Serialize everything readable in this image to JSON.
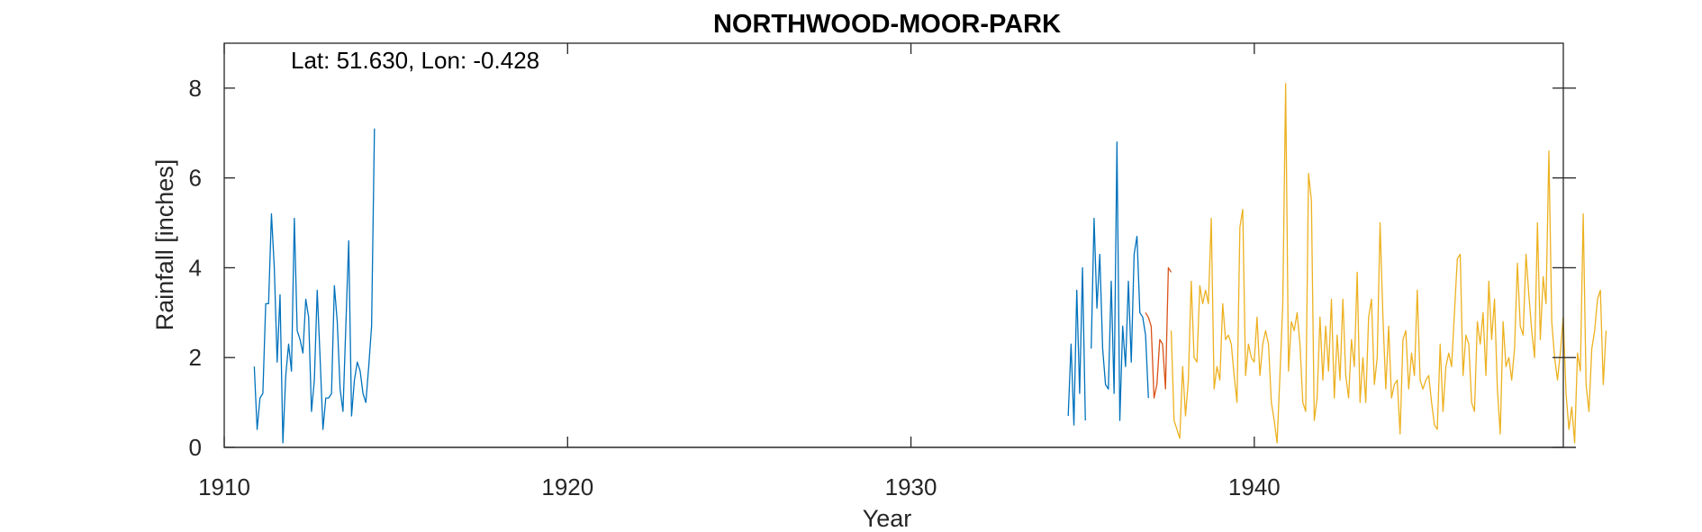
{
  "chart_data": {
    "type": "line",
    "title": "NORTHWOOD-MOOR-PARK",
    "annotation": "Lat: 51.630, Lon: -0.428",
    "xlabel": "Year",
    "ylabel": "Rainfall [inches]",
    "xlim": [
      1910,
      1949
    ],
    "ylim": [
      0,
      9
    ],
    "xticks": [
      1910,
      1920,
      1930,
      1940
    ],
    "yticks": [
      0,
      2,
      4,
      6,
      8
    ],
    "grid": false,
    "colors": {
      "blue": "#0072BD",
      "red": "#D95319",
      "orange": "#EDB120"
    },
    "series": [
      {
        "color": "#0072BD",
        "x_start": 1910.875,
        "step": 0.08333,
        "values": [
          1.8,
          0.4,
          1.1,
          1.2,
          3.2,
          3.2,
          5.2,
          4.0,
          1.9,
          3.4,
          0.1,
          1.6,
          2.3,
          1.7,
          5.1,
          2.6,
          2.4,
          2.1,
          3.3,
          2.9,
          0.8,
          1.5,
          3.5,
          2.0,
          0.4,
          1.1,
          1.1,
          1.2,
          3.6,
          2.8,
          1.3,
          0.8,
          2.7,
          4.6,
          0.7,
          1.5,
          1.9,
          1.7,
          1.2,
          1.0,
          1.8,
          2.7,
          7.1
        ]
      },
      {
        "color": "#0072BD",
        "x_start": 1934.58,
        "step": 0.08333,
        "values": [
          0.7,
          2.3,
          0.5,
          3.5,
          1.2,
          4.0,
          0.6
        ]
      },
      {
        "color": "#0072BD",
        "x_start": 1935.25,
        "step": 0.08333,
        "values": [
          2.2,
          5.1,
          3.1,
          4.3,
          2.2,
          1.4,
          1.3,
          3.7,
          1.2,
          6.8,
          0.6,
          2.7,
          1.8,
          3.7,
          1.9,
          4.3,
          4.7,
          3.0,
          2.9,
          2.5,
          1.1
        ]
      },
      {
        "color": "#D95319",
        "x_start": 1936.83,
        "step": 0.08333,
        "values": [
          3.0,
          2.9,
          2.7,
          1.1,
          1.4,
          2.4,
          2.3,
          1.3,
          4.0,
          3.9
        ]
      },
      {
        "color": "#EDB120",
        "x_start": 1937.58,
        "step": 0.08333,
        "values": [
          2.6,
          0.6,
          0.4,
          0.2,
          1.8,
          0.7,
          1.5,
          3.7,
          2.0,
          1.9,
          3.6,
          3.2,
          3.5,
          3.2,
          5.1,
          1.3,
          1.8,
          1.5,
          3.2,
          2.4,
          2.5,
          2.3,
          1.6,
          1.0,
          4.9,
          5.3,
          1.6,
          2.3,
          2.0,
          1.9,
          2.9,
          1.6,
          2.3,
          2.6,
          2.3,
          1.0,
          0.6,
          0.1,
          1.6,
          3.2,
          8.1,
          1.7,
          2.8,
          2.6,
          3.0,
          2.3,
          1.0,
          0.8,
          6.1,
          5.5,
          0.6,
          1.1,
          2.9,
          1.5,
          2.7,
          1.7,
          3.3,
          1.1,
          2.5,
          1.5,
          3.3,
          1.6,
          1.1,
          2.4,
          1.8,
          3.9,
          1.0,
          2.0,
          1.0,
          2.9,
          3.3,
          1.4,
          2.0,
          5.0,
          2.9,
          1.3,
          2.7,
          1.1,
          1.4,
          1.5,
          0.3,
          2.4,
          2.6,
          1.3,
          2.1,
          1.6,
          3.5,
          1.5,
          1.3,
          1.5,
          1.6,
          1.0,
          0.5,
          0.4,
          2.3,
          0.8,
          1.8,
          2.1,
          1.8,
          3.0,
          4.2,
          4.3,
          1.6,
          2.5,
          2.3,
          1.0,
          0.8,
          2.8,
          2.3,
          3.0,
          1.6,
          3.7,
          2.4,
          3.3,
          1.3,
          0.3,
          2.8,
          1.8,
          2.0,
          1.5,
          2.2,
          4.1,
          2.7,
          2.5,
          4.3,
          3.4,
          2.6,
          2.0,
          5.0,
          2.4,
          3.8,
          3.2,
          6.6,
          2.8,
          2.0,
          1.5,
          2.1,
          2.9,
          1.2,
          0.4,
          0.9,
          0.1,
          2.1,
          1.7,
          5.2,
          1.4,
          0.8,
          2.2,
          2.6,
          3.3,
          3.5,
          1.4,
          2.6
        ]
      }
    ]
  }
}
